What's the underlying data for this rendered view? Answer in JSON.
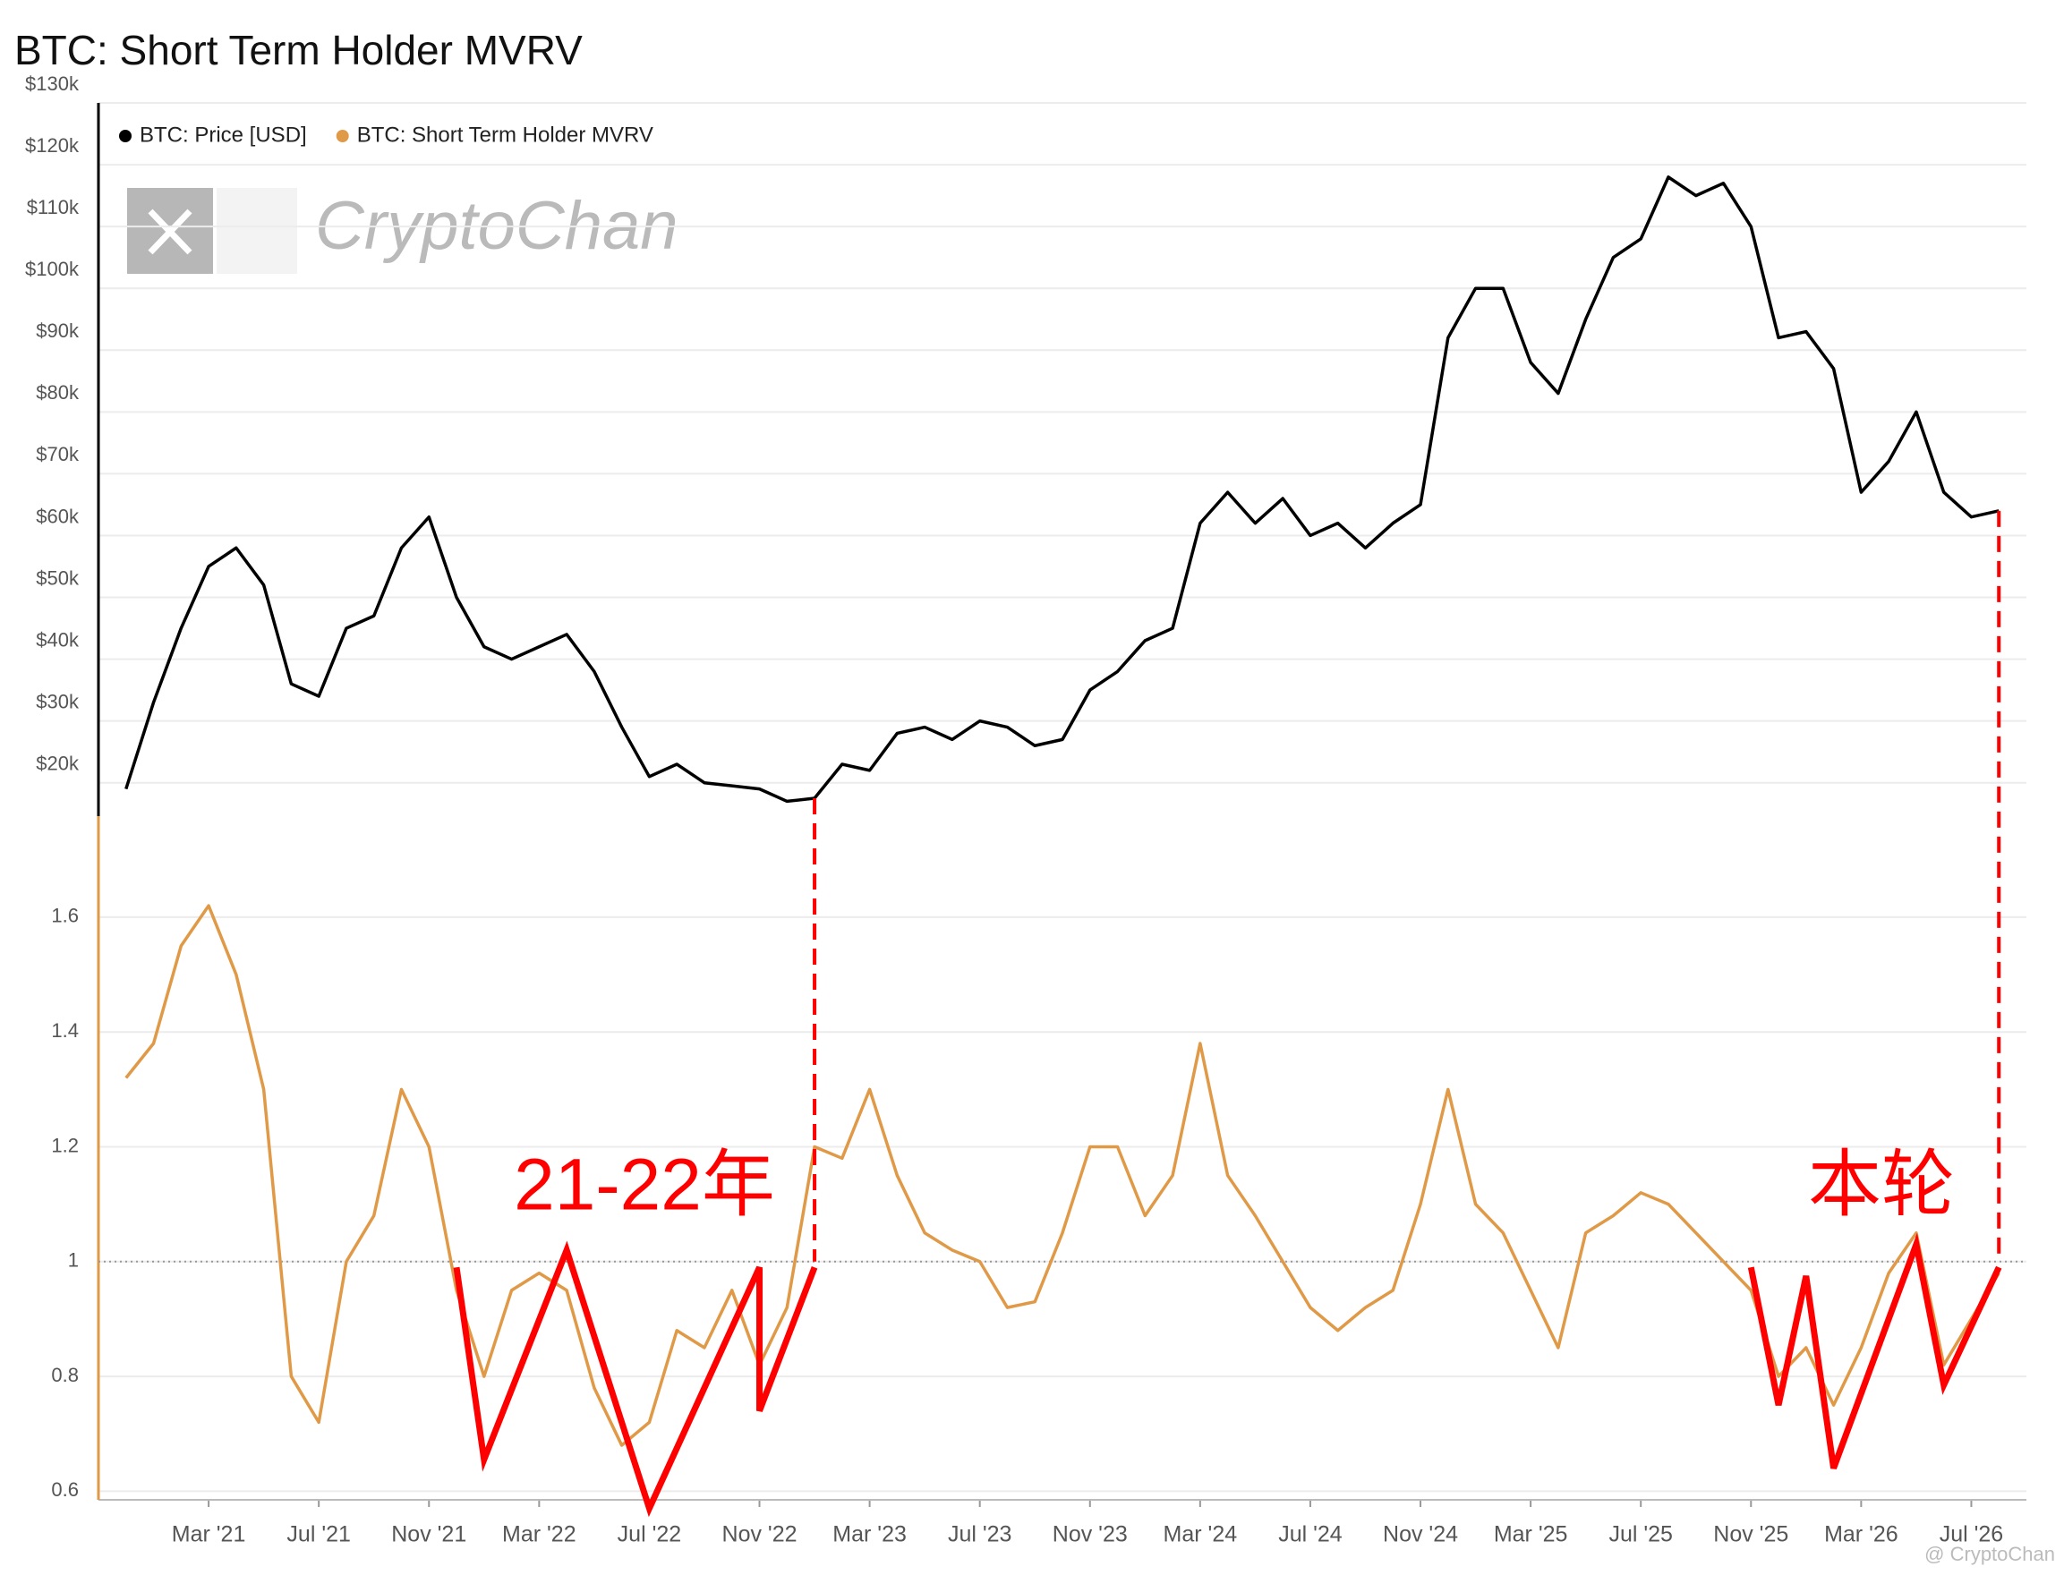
{
  "chart_data": {
    "type": "line",
    "title": "BTC: Short Term Holder MVRV",
    "x": [
      "2020-12",
      "2021-01",
      "2021-02",
      "2021-03",
      "2021-04",
      "2021-05",
      "2021-06",
      "2021-07",
      "2021-08",
      "2021-09",
      "2021-10",
      "2021-11",
      "2021-12",
      "2022-01",
      "2022-02",
      "2022-03",
      "2022-04",
      "2022-05",
      "2022-06",
      "2022-07",
      "2022-08",
      "2022-09",
      "2022-10",
      "2022-11",
      "2022-12",
      "2023-01",
      "2023-02",
      "2023-03",
      "2023-04",
      "2023-05",
      "2023-06",
      "2023-07",
      "2023-08",
      "2023-09",
      "2023-10",
      "2023-11",
      "2023-12",
      "2024-01",
      "2024-02",
      "2024-03",
      "2024-04",
      "2024-05",
      "2024-06",
      "2024-07",
      "2024-08",
      "2024-09",
      "2024-10",
      "2024-11",
      "2024-12",
      "2025-01",
      "2025-02",
      "2025-03",
      "2025-04",
      "2025-05",
      "2025-06",
      "2025-07",
      "2025-08",
      "2025-09",
      "2025-10",
      "2025-11",
      "2025-12",
      "2026-01",
      "2026-02",
      "2026-03",
      "2026-04",
      "2026-05",
      "2026-06",
      "2026-07",
      "2026-08"
    ],
    "series": [
      {
        "name": "BTC: Price [USD]",
        "color": "#000000",
        "values": [
          19000,
          33000,
          45000,
          55000,
          58000,
          52000,
          36000,
          34000,
          45000,
          47000,
          58000,
          63000,
          50000,
          42000,
          40000,
          42000,
          44000,
          38000,
          29000,
          21000,
          23000,
          20000,
          19500,
          19000,
          17000,
          17500,
          23000,
          22000,
          28000,
          29000,
          27000,
          30000,
          29000,
          26000,
          27000,
          35000,
          38000,
          43000,
          45000,
          62000,
          67000,
          62000,
          66000,
          60000,
          62000,
          58000,
          62000,
          65000,
          92000,
          100000,
          100000,
          88000,
          83000,
          95000,
          105000,
          108000,
          118000,
          115000,
          117000,
          110000,
          92000,
          93000,
          87000,
          67000,
          72000,
          80000,
          67000,
          63000,
          64000
        ]
      },
      {
        "name": "BTC: Short Term Holder MVRV",
        "color": "#e09a47",
        "axis": "y2",
        "values": [
          1.32,
          1.38,
          1.55,
          1.62,
          1.5,
          1.3,
          0.8,
          0.72,
          1.0,
          1.08,
          1.3,
          1.2,
          0.95,
          0.8,
          0.95,
          0.98,
          0.95,
          0.78,
          0.68,
          0.72,
          0.88,
          0.85,
          0.95,
          0.82,
          0.92,
          1.2,
          1.18,
          1.3,
          1.15,
          1.05,
          1.02,
          1.0,
          0.92,
          0.93,
          1.05,
          1.2,
          1.2,
          1.08,
          1.15,
          1.38,
          1.15,
          1.08,
          1.0,
          0.92,
          0.88,
          0.92,
          0.95,
          1.1,
          1.3,
          1.1,
          1.05,
          0.95,
          0.85,
          1.05,
          1.08,
          1.12,
          1.1,
          1.05,
          1.0,
          0.95,
          0.8,
          0.85,
          0.75,
          0.85,
          0.98,
          1.05,
          0.82,
          0.9,
          0.98
        ]
      }
    ],
    "xlim": [
      "2020-11",
      "2026-09"
    ],
    "xticks": [
      {
        "value": "2021-03",
        "label": "Mar '21"
      },
      {
        "value": "2021-07",
        "label": "Jul '21"
      },
      {
        "value": "2021-11",
        "label": "Nov '21"
      },
      {
        "value": "2022-03",
        "label": "Mar '22"
      },
      {
        "value": "2022-07",
        "label": "Jul '22"
      },
      {
        "value": "2022-11",
        "label": "Nov '22"
      },
      {
        "value": "2023-03",
        "label": "Mar '23"
      },
      {
        "value": "2023-07",
        "label": "Jul '23"
      },
      {
        "value": "2023-11",
        "label": "Nov '23"
      },
      {
        "value": "2024-03",
        "label": "Mar '24"
      },
      {
        "value": "2024-07",
        "label": "Jul '24"
      },
      {
        "value": "2024-11",
        "label": "Nov '24"
      },
      {
        "value": "2025-03",
        "label": "Mar '25"
      },
      {
        "value": "2025-07",
        "label": "Jul '25"
      },
      {
        "value": "2025-11",
        "label": "Nov '25"
      },
      {
        "value": "2026-03",
        "label": "Mar '26"
      },
      {
        "value": "2026-07",
        "label": "Jul '26"
      }
    ],
    "ylim": [
      14600,
      130000
    ],
    "yticks": [
      {
        "value": 20000,
        "label": "$20k"
      },
      {
        "value": 30000,
        "label": "$30k"
      },
      {
        "value": 40000,
        "label": "$40k"
      },
      {
        "value": 50000,
        "label": "$50k"
      },
      {
        "value": 60000,
        "label": "$60k"
      },
      {
        "value": 70000,
        "label": "$70k"
      },
      {
        "value": 80000,
        "label": "$80k"
      },
      {
        "value": 90000,
        "label": "$90k"
      },
      {
        "value": 100000,
        "label": "$100k"
      },
      {
        "value": 110000,
        "label": "$110k"
      },
      {
        "value": 120000,
        "label": "$120k"
      },
      {
        "value": 130000,
        "label": "$130k"
      }
    ],
    "y2lim": [
      0.585,
      1.776
    ],
    "y2ticks": [
      0.6,
      0.8,
      1,
      1.2,
      1.4,
      1.6
    ],
    "grid": true,
    "reference_line": 1,
    "annotation_color": "#ff0000",
    "zigzags": [
      {
        "label": "21-22年",
        "x": [
          "2021-12",
          "2022-01",
          "2022-04",
          "2022-07",
          "2022-11",
          "2022-11",
          "2023-01"
        ],
        "values": [
          0.99,
          0.655,
          1.02,
          0.57,
          0.99,
          0.74,
          0.99
        ]
      },
      {
        "label": "本轮",
        "x": [
          "2025-11",
          "2025-12",
          "2026-01",
          "2026-02",
          "2026-05",
          "2026-06",
          "2026-08"
        ],
        "values": [
          0.99,
          0.75,
          0.975,
          0.64,
          1.03,
          0.785,
          0.99
        ]
      }
    ],
    "dashed_markers": [
      "2023-01",
      "2026-08"
    ],
    "watermark": "CryptoChan",
    "footer": "@ CryptoChan"
  }
}
